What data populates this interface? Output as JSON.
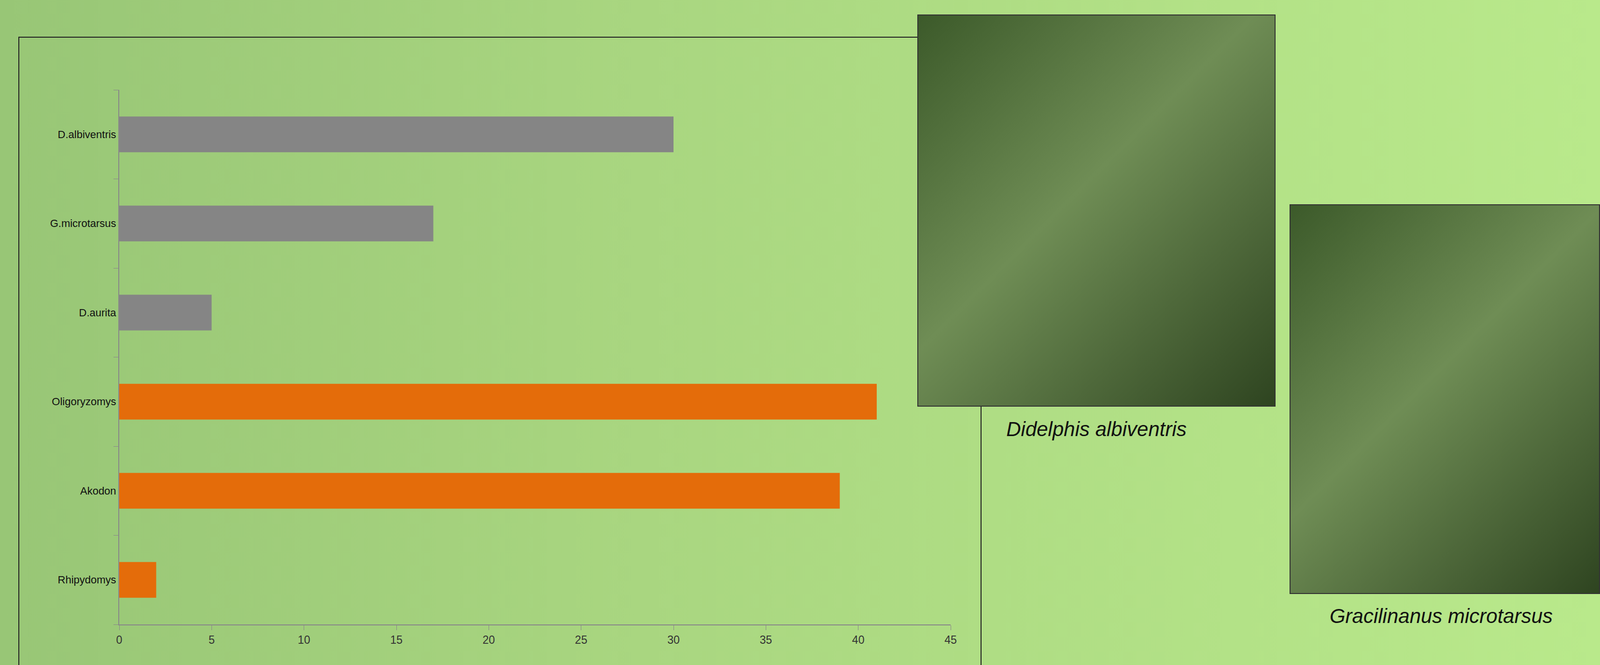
{
  "chart_data": {
    "type": "bar",
    "orientation": "horizontal",
    "categories": [
      "D.albiventris",
      "G.microtarsus",
      "D.aurita",
      "Oligoryzomys",
      "Akodon",
      "Rhipydomys"
    ],
    "values": [
      30,
      17,
      5,
      41,
      39,
      2
    ],
    "colors": [
      "#858585",
      "#858585",
      "#858585",
      "#e46c0a",
      "#e46c0a",
      "#e46c0a"
    ],
    "xlim": [
      0,
      45
    ],
    "xticks": [
      0,
      5,
      10,
      15,
      20,
      25,
      30,
      35,
      40,
      45
    ],
    "grid": false
  },
  "photos": [
    {
      "caption": "Didelphis albiventris"
    },
    {
      "caption": "Gracilinanus microtarsus"
    }
  ]
}
